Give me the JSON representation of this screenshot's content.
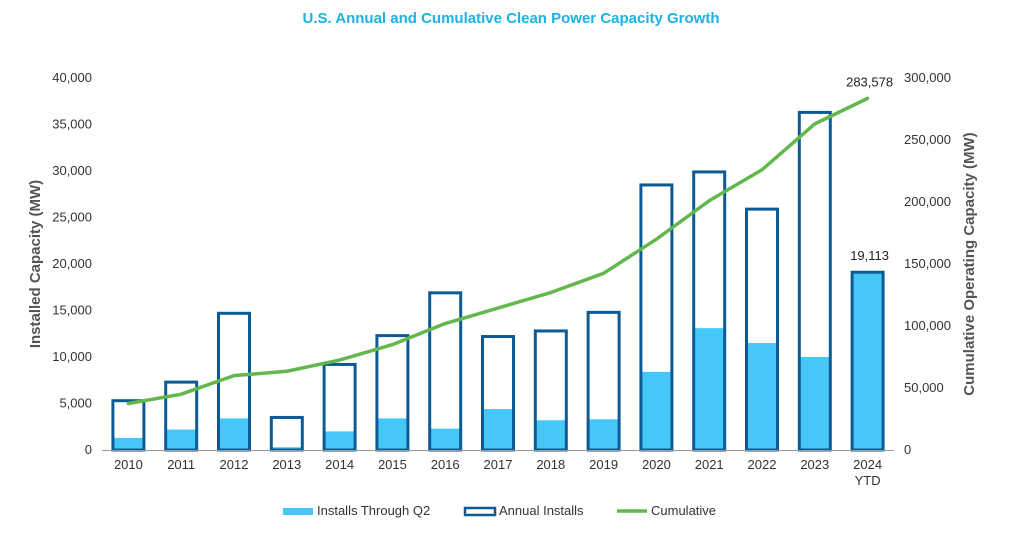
{
  "chart_data": {
    "type": "bar",
    "title": "U.S. Annual and Cumulative Clean Power Capacity Growth",
    "categories": [
      "2010",
      "2011",
      "2012",
      "2013",
      "2014",
      "2015",
      "2016",
      "2017",
      "2018",
      "2019",
      "2020",
      "2021",
      "2022",
      "2023",
      "2024 YTD"
    ],
    "category_lines": [
      [
        "2010"
      ],
      [
        "2011"
      ],
      [
        "2012"
      ],
      [
        "2013"
      ],
      [
        "2014"
      ],
      [
        "2015"
      ],
      [
        "2016"
      ],
      [
        "2017"
      ],
      [
        "2018"
      ],
      [
        "2019"
      ],
      [
        "2020"
      ],
      [
        "2021"
      ],
      [
        "2022"
      ],
      [
        "2023"
      ],
      [
        "2024",
        "YTD"
      ]
    ],
    "ylabel": "Installed Capacity (MW)",
    "y2label": "Cumulative Operating Capacity (MW)",
    "ylim": [
      0,
      40000
    ],
    "y2lim": [
      0,
      300000
    ],
    "yticks": [
      "0",
      "5,000",
      "10,000",
      "15,000",
      "20,000",
      "25,000",
      "30,000",
      "35,000",
      "40,000"
    ],
    "y2ticks": [
      "0",
      "50,000",
      "100,000",
      "150,000",
      "200,000",
      "250,000",
      "300,000"
    ],
    "grid": false,
    "legend_position": "bottom",
    "series": [
      {
        "name": "Installs Through Q2",
        "kind": "bar-filled",
        "axis": "left",
        "color": "#45c8f7",
        "values": [
          1300,
          2200,
          3400,
          300,
          2000,
          3400,
          2300,
          4400,
          3200,
          3300,
          8400,
          13100,
          11500,
          10000,
          19113
        ]
      },
      {
        "name": "Annual Installs",
        "kind": "bar-outline",
        "axis": "left",
        "color": "#0d5a94",
        "values": [
          5300,
          7300,
          14700,
          3500,
          9200,
          12300,
          16900,
          12200,
          12800,
          14800,
          28500,
          29900,
          25900,
          36300,
          19113
        ]
      },
      {
        "name": "Cumulative",
        "kind": "line",
        "axis": "right",
        "color": "#62b84d",
        "values": [
          37500,
          45000,
          60000,
          63500,
          72500,
          85000,
          102000,
          114500,
          127000,
          142500,
          170000,
          201000,
          226000,
          263000,
          283578
        ]
      }
    ],
    "annotations": [
      {
        "text": "283,578",
        "series": "Cumulative",
        "index": 14
      },
      {
        "text": "19,113",
        "series": "Annual Installs",
        "index": 14
      }
    ]
  }
}
